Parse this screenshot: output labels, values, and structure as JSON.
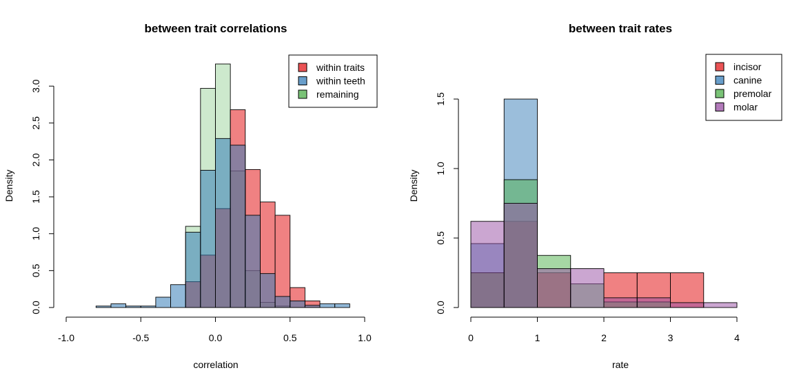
{
  "colors": {
    "red": "#e41a1c",
    "blue": "#377eb8",
    "green": "#4daf4a",
    "purple": "#984ea3"
  },
  "chart_data": [
    {
      "type": "histogram",
      "title": "between trait correlations",
      "xlabel": "correlation",
      "ylabel": "Density",
      "xlim": [
        -1.0,
        1.0
      ],
      "ylim": [
        0,
        3.3
      ],
      "xticks": [
        -1.0,
        -0.5,
        0.0,
        0.5,
        1.0
      ],
      "xtick_labels": [
        "-1.0",
        "-0.5",
        "0.0",
        "0.5",
        "1.0"
      ],
      "yticks": [
        0,
        0.5,
        1.0,
        1.5,
        2.0,
        2.5,
        3.0
      ],
      "ytick_labels": [
        "0.0",
        "0.5",
        "1.0",
        "1.5",
        "2.0",
        "2.5",
        "3.0"
      ],
      "grid": false,
      "legend_position": "top-right",
      "legend": [
        {
          "label": "within traits",
          "color": "#e41a1c"
        },
        {
          "label": "within teeth",
          "color": "#377eb8"
        },
        {
          "label": "remaining",
          "color": "#4daf4a"
        }
      ],
      "series": [
        {
          "name": "remaining",
          "color": "#4daf4a",
          "alpha": 0.28,
          "bins": [
            {
              "x0": -0.2,
              "x1": -0.1,
              "y": 1.1
            },
            {
              "x0": -0.1,
              "x1": 0.0,
              "y": 2.97
            },
            {
              "x0": 0.0,
              "x1": 0.1,
              "y": 3.3
            },
            {
              "x0": 0.1,
              "x1": 0.2,
              "y": 1.85
            },
            {
              "x0": 0.2,
              "x1": 0.3,
              "y": 0.5
            },
            {
              "x0": 0.3,
              "x1": 0.4,
              "y": 0.07
            },
            {
              "x0": 0.4,
              "x1": 0.5,
              "y": 0.02
            }
          ]
        },
        {
          "name": "within traits",
          "color": "#e41a1c",
          "alpha": 0.55,
          "bins": [
            {
              "x0": -0.2,
              "x1": -0.1,
              "y": 0.35
            },
            {
              "x0": -0.1,
              "x1": 0.0,
              "y": 0.71
            },
            {
              "x0": 0.0,
              "x1": 0.1,
              "y": 1.34
            },
            {
              "x0": 0.1,
              "x1": 0.2,
              "y": 2.68
            },
            {
              "x0": 0.2,
              "x1": 0.3,
              "y": 1.87
            },
            {
              "x0": 0.3,
              "x1": 0.4,
              "y": 1.43
            },
            {
              "x0": 0.4,
              "x1": 0.5,
              "y": 1.25
            },
            {
              "x0": 0.5,
              "x1": 0.6,
              "y": 0.27
            },
            {
              "x0": 0.6,
              "x1": 0.7,
              "y": 0.09
            }
          ]
        },
        {
          "name": "within teeth",
          "color": "#377eb8",
          "alpha": 0.55,
          "bins": [
            {
              "x0": -0.8,
              "x1": -0.7,
              "y": 0.02
            },
            {
              "x0": -0.7,
              "x1": -0.6,
              "y": 0.05
            },
            {
              "x0": -0.6,
              "x1": -0.5,
              "y": 0.02
            },
            {
              "x0": -0.5,
              "x1": -0.4,
              "y": 0.02
            },
            {
              "x0": -0.4,
              "x1": -0.3,
              "y": 0.14
            },
            {
              "x0": -0.3,
              "x1": -0.2,
              "y": 0.31
            },
            {
              "x0": -0.2,
              "x1": -0.1,
              "y": 1.02
            },
            {
              "x0": -0.1,
              "x1": 0.0,
              "y": 1.86
            },
            {
              "x0": 0.0,
              "x1": 0.1,
              "y": 2.29
            },
            {
              "x0": 0.1,
              "x1": 0.2,
              "y": 2.2
            },
            {
              "x0": 0.2,
              "x1": 0.3,
              "y": 1.25
            },
            {
              "x0": 0.3,
              "x1": 0.4,
              "y": 0.46
            },
            {
              "x0": 0.4,
              "x1": 0.5,
              "y": 0.15
            },
            {
              "x0": 0.5,
              "x1": 0.6,
              "y": 0.09
            },
            {
              "x0": 0.6,
              "x1": 0.7,
              "y": 0.03
            },
            {
              "x0": 0.7,
              "x1": 0.8,
              "y": 0.05
            },
            {
              "x0": 0.8,
              "x1": 0.9,
              "y": 0.05
            }
          ]
        }
      ]
    },
    {
      "type": "histogram",
      "title": "between trait rates",
      "xlabel": "rate",
      "ylabel": "Density",
      "xlim": [
        0,
        4
      ],
      "ylim": [
        0,
        1.5
      ],
      "xticks": [
        0,
        1,
        2,
        3,
        4
      ],
      "xtick_labels": [
        "0",
        "1",
        "2",
        "3",
        "4"
      ],
      "yticks": [
        0,
        0.5,
        1.0,
        1.5
      ],
      "ytick_labels": [
        "0.0",
        "0.5",
        "1.0",
        "1.5"
      ],
      "grid": false,
      "legend_position": "top-right",
      "legend": [
        {
          "label": "incisor",
          "color": "#e41a1c"
        },
        {
          "label": "canine",
          "color": "#377eb8"
        },
        {
          "label": "premolar",
          "color": "#4daf4a"
        },
        {
          "label": "molar",
          "color": "#984ea3"
        }
      ],
      "series": [
        {
          "name": "incisor",
          "color": "#e41a1c",
          "alpha": 0.55,
          "bins": [
            {
              "x0": 0.0,
              "x1": 0.5,
              "y": 0.25
            },
            {
              "x0": 0.5,
              "x1": 1.0,
              "y": 0.62
            },
            {
              "x0": 1.0,
              "x1": 1.5,
              "y": 0.25
            },
            {
              "x0": 2.0,
              "x1": 2.5,
              "y": 0.25
            },
            {
              "x0": 2.5,
              "x1": 3.0,
              "y": 0.25
            },
            {
              "x0": 3.0,
              "x1": 3.5,
              "y": 0.25
            }
          ]
        },
        {
          "name": "canine",
          "color": "#377eb8",
          "alpha": 0.5,
          "bins": [
            {
              "x0": 0.0,
              "x1": 0.5,
              "y": 0.46
            },
            {
              "x0": 0.5,
              "x1": 1.0,
              "y": 1.5
            }
          ]
        },
        {
          "name": "premolar",
          "color": "#4daf4a",
          "alpha": 0.5,
          "bins": [
            {
              "x0": 0.0,
              "x1": 0.5,
              "y": 0.25
            },
            {
              "x0": 0.5,
              "x1": 1.0,
              "y": 0.92
            },
            {
              "x0": 1.0,
              "x1": 1.5,
              "y": 0.375
            },
            {
              "x0": 1.5,
              "x1": 2.0,
              "y": 0.17
            },
            {
              "x0": 2.0,
              "x1": 2.5,
              "y": 0.04
            },
            {
              "x0": 2.5,
              "x1": 3.0,
              "y": 0.04
            }
          ]
        },
        {
          "name": "molar",
          "color": "#984ea3",
          "alpha": 0.5,
          "bins": [
            {
              "x0": 0.0,
              "x1": 0.5,
              "y": 0.62
            },
            {
              "x0": 0.5,
              "x1": 1.0,
              "y": 0.75
            },
            {
              "x0": 1.0,
              "x1": 1.5,
              "y": 0.28
            },
            {
              "x0": 1.5,
              "x1": 2.0,
              "y": 0.28
            },
            {
              "x0": 2.0,
              "x1": 2.5,
              "y": 0.07
            },
            {
              "x0": 2.5,
              "x1": 3.0,
              "y": 0.07
            },
            {
              "x0": 3.0,
              "x1": 3.5,
              "y": 0.035
            },
            {
              "x0": 3.5,
              "x1": 4.0,
              "y": 0.035
            }
          ]
        }
      ]
    }
  ]
}
